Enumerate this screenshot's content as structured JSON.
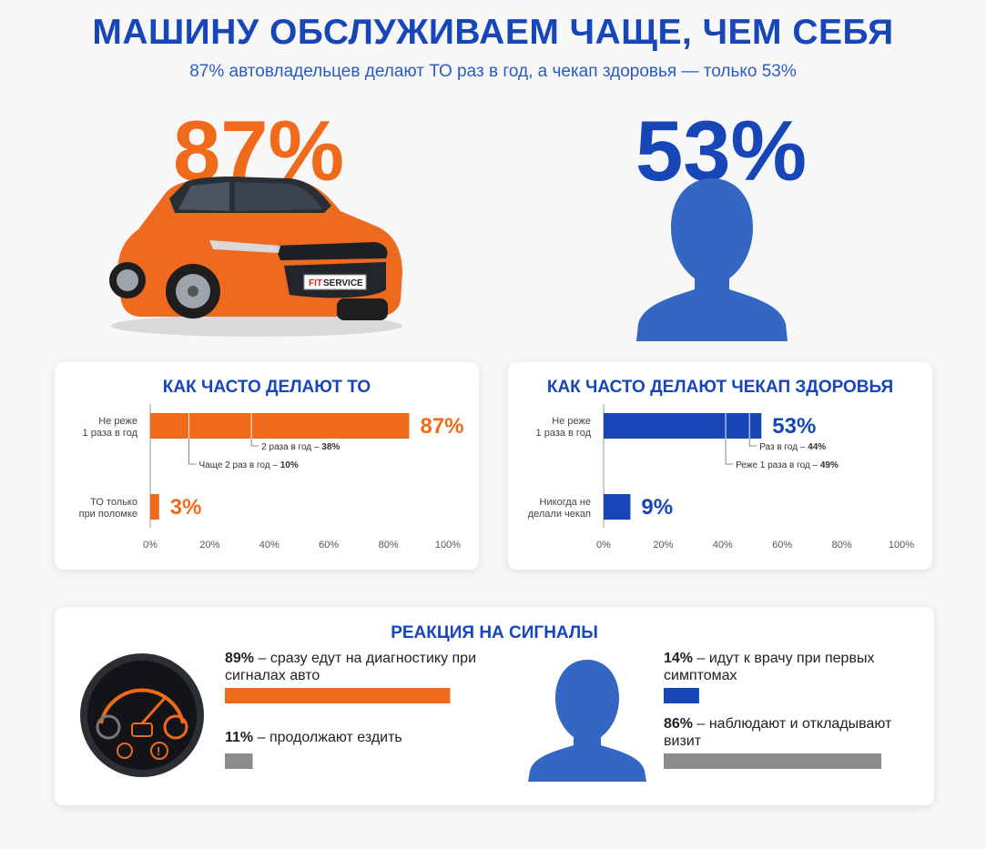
{
  "header": {
    "title": "МАШИНУ ОБСЛУЖИВАЕМ ЧАЩЕ, ЧЕМ СЕБЯ",
    "subtitle": "87% автовладельцев делают ТО раз в год, а чекап здоровья — только 53%"
  },
  "hero": {
    "left_value": "87%",
    "right_value": "53%",
    "car_badge_brand": "FIT",
    "car_badge_text": "SERVICE"
  },
  "colors": {
    "orange": "#ef6a1a",
    "blue": "#1746b8",
    "gray": "#8c8c8c"
  },
  "chart_data": [
    {
      "type": "bar",
      "orientation": "horizontal",
      "title": "КАК ЧАСТО ДЕЛАЮТ ТО",
      "categories": [
        "Не реже 1 раза в год",
        "ТО только при поломке"
      ],
      "category_lines": [
        [
          "Не реже",
          "1 раза в год"
        ],
        [
          "ТО только",
          "при поломке"
        ]
      ],
      "values": [
        87,
        3
      ],
      "value_labels": [
        "87%",
        "3%"
      ],
      "xlim": [
        0,
        100
      ],
      "xticks": [
        "0%",
        "20%",
        "40%",
        "60%",
        "80%",
        "100%"
      ],
      "breakdown": [
        {
          "label": "2 раза в год",
          "value": 38,
          "value_label": "38%"
        },
        {
          "label": "Чаще 2 раз в год",
          "value": 10,
          "value_label": "10%"
        }
      ],
      "breakdown_dividers": [
        13,
        34
      ],
      "color": "#ef6a1a"
    },
    {
      "type": "bar",
      "orientation": "horizontal",
      "title": "КАК ЧАСТО ДЕЛАЮТ ЧЕКАП ЗДОРОВЬЯ",
      "categories": [
        "Не реже 1 раза в год",
        "Никогда не делали чекап"
      ],
      "category_lines": [
        [
          "Не реже",
          "1 раза в год"
        ],
        [
          "Никогда не",
          "делали чекап"
        ]
      ],
      "values": [
        53,
        9
      ],
      "value_labels": [
        "53%",
        "9%"
      ],
      "xlim": [
        0,
        100
      ],
      "xticks": [
        "0%",
        "20%",
        "40%",
        "60%",
        "80%",
        "100%"
      ],
      "breakdown": [
        {
          "label": "Раз в год",
          "value": 44,
          "value_label": "44%"
        },
        {
          "label": "Реже 1 раза в год",
          "value": 49,
          "value_label": "49%"
        }
      ],
      "breakdown_dividers": [
        41,
        49
      ],
      "color": "#1746b8"
    },
    {
      "type": "bar",
      "orientation": "horizontal",
      "title": "РЕАКЦИЯ НА СИГНАЛЫ",
      "xlim": [
        0,
        100
      ],
      "items": [
        {
          "group": "car",
          "pct": "89%",
          "text": "– сразу едут на диагностику при сигналах авто",
          "value": 89,
          "color": "#ef6a1a"
        },
        {
          "group": "car",
          "pct": "11%",
          "text": "– продолжают ездить",
          "value": 11,
          "color": "#8c8c8c"
        },
        {
          "group": "person",
          "pct": "14%",
          "text": "– идут к врачу при первых симптомах",
          "value": 14,
          "color": "#1746b8"
        },
        {
          "group": "person",
          "pct": "86%",
          "text": "– наблюдают и откладывают визит",
          "value": 86,
          "color": "#8c8c8c"
        }
      ]
    }
  ]
}
